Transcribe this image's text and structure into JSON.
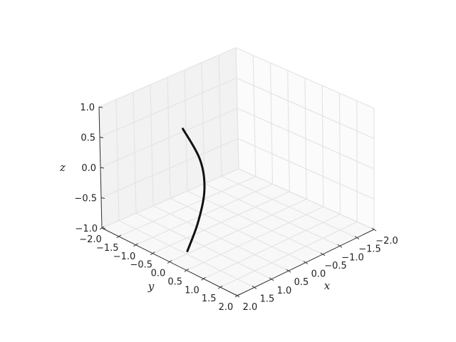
{
  "chart_data": {
    "type": "line3d",
    "title": "",
    "xlabel": "x",
    "ylabel": "y",
    "zlabel": "z",
    "xlim": [
      -2,
      2
    ],
    "ylim": [
      -2,
      2
    ],
    "zlim": [
      -1,
      1
    ],
    "xticks": [
      "−2.0",
      "−1.5",
      "−1.0",
      "−0.5",
      "0.0",
      "0.5",
      "1.0",
      "1.5",
      "2.0"
    ],
    "yticks": [
      "−2.0",
      "−1.5",
      "−1.0",
      "−0.5",
      "0.0",
      "0.5",
      "1.0",
      "1.5",
      "2.0"
    ],
    "zticks": [
      "−1.0",
      "−0.5",
      "0.0",
      "0.5",
      "1.0"
    ],
    "grid": true,
    "series": [
      {
        "color": "#111111",
        "points": [
          [
            1.4,
            -0.08,
            -1.0
          ],
          [
            1.25,
            0.1,
            -0.5
          ],
          [
            1.1,
            0.14,
            0.0
          ],
          [
            1.08,
            0.0,
            0.45
          ],
          [
            1.22,
            -0.35,
            0.9
          ]
        ]
      }
    ]
  }
}
